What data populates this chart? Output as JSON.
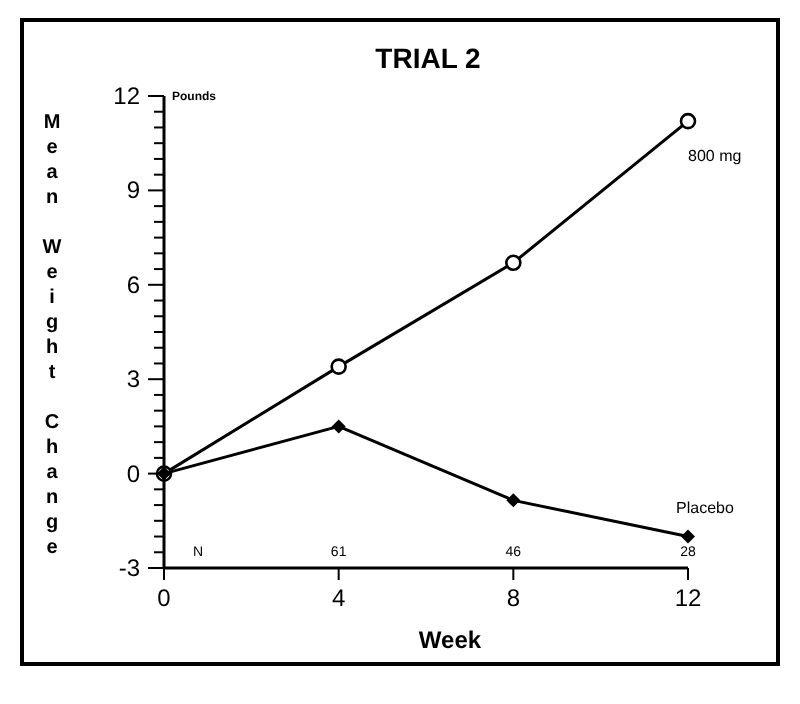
{
  "chart_data": {
    "type": "line",
    "title": "TRIAL 2",
    "xlabel": "Week",
    "ylabel": "Mean Weight Change",
    "annotations": [
      "Pounds",
      "N",
      "61",
      "46",
      "28"
    ],
    "x": [
      0,
      4,
      8,
      12
    ],
    "series": [
      {
        "name": "800 mg",
        "color": "#000000",
        "marker": "circle",
        "values": [
          0,
          3.4,
          6.7,
          11.2
        ]
      },
      {
        "name": "Placebo",
        "color": "#000000",
        "marker": "diamond",
        "values": [
          0,
          1.5,
          -0.85,
          -2.0
        ]
      }
    ],
    "xlim": [
      0,
      12
    ],
    "xticks": [
      0,
      4,
      8,
      12
    ],
    "ylim": [
      -3,
      12
    ],
    "yticks": [
      -3,
      {
        "value": -2.5,
        "label": null
      },
      {
        "value": -2,
        "label": null
      },
      {
        "value": -1.5,
        "label": null
      },
      {
        "value": -1,
        "label": null
      },
      {
        "value": -0.5,
        "label": null
      },
      0,
      {
        "value": 0.5,
        "label": null
      },
      {
        "value": 1,
        "label": null
      },
      {
        "value": 1.5,
        "label": null
      },
      {
        "value": 2,
        "label": null
      },
      {
        "value": 2.5,
        "label": null
      },
      3,
      {
        "value": 3.5,
        "label": null
      },
      {
        "value": 4,
        "label": null
      },
      {
        "value": 4.5,
        "label": null
      },
      {
        "value": 5,
        "label": null
      },
      {
        "value": 5.5,
        "label": null
      },
      6,
      {
        "value": 6.5,
        "label": null
      },
      {
        "value": 7,
        "label": null
      },
      {
        "value": 7.5,
        "label": null
      },
      {
        "value": 8,
        "label": null
      },
      {
        "value": 8.5,
        "label": null
      },
      9,
      {
        "value": 9.5,
        "label": null
      },
      {
        "value": 10,
        "label": null
      },
      {
        "value": 10.5,
        "label": null
      },
      {
        "value": 11,
        "label": null
      },
      {
        "value": 11.5,
        "label": null
      },
      12
    ],
    "grid": false,
    "line_style": "solid"
  }
}
